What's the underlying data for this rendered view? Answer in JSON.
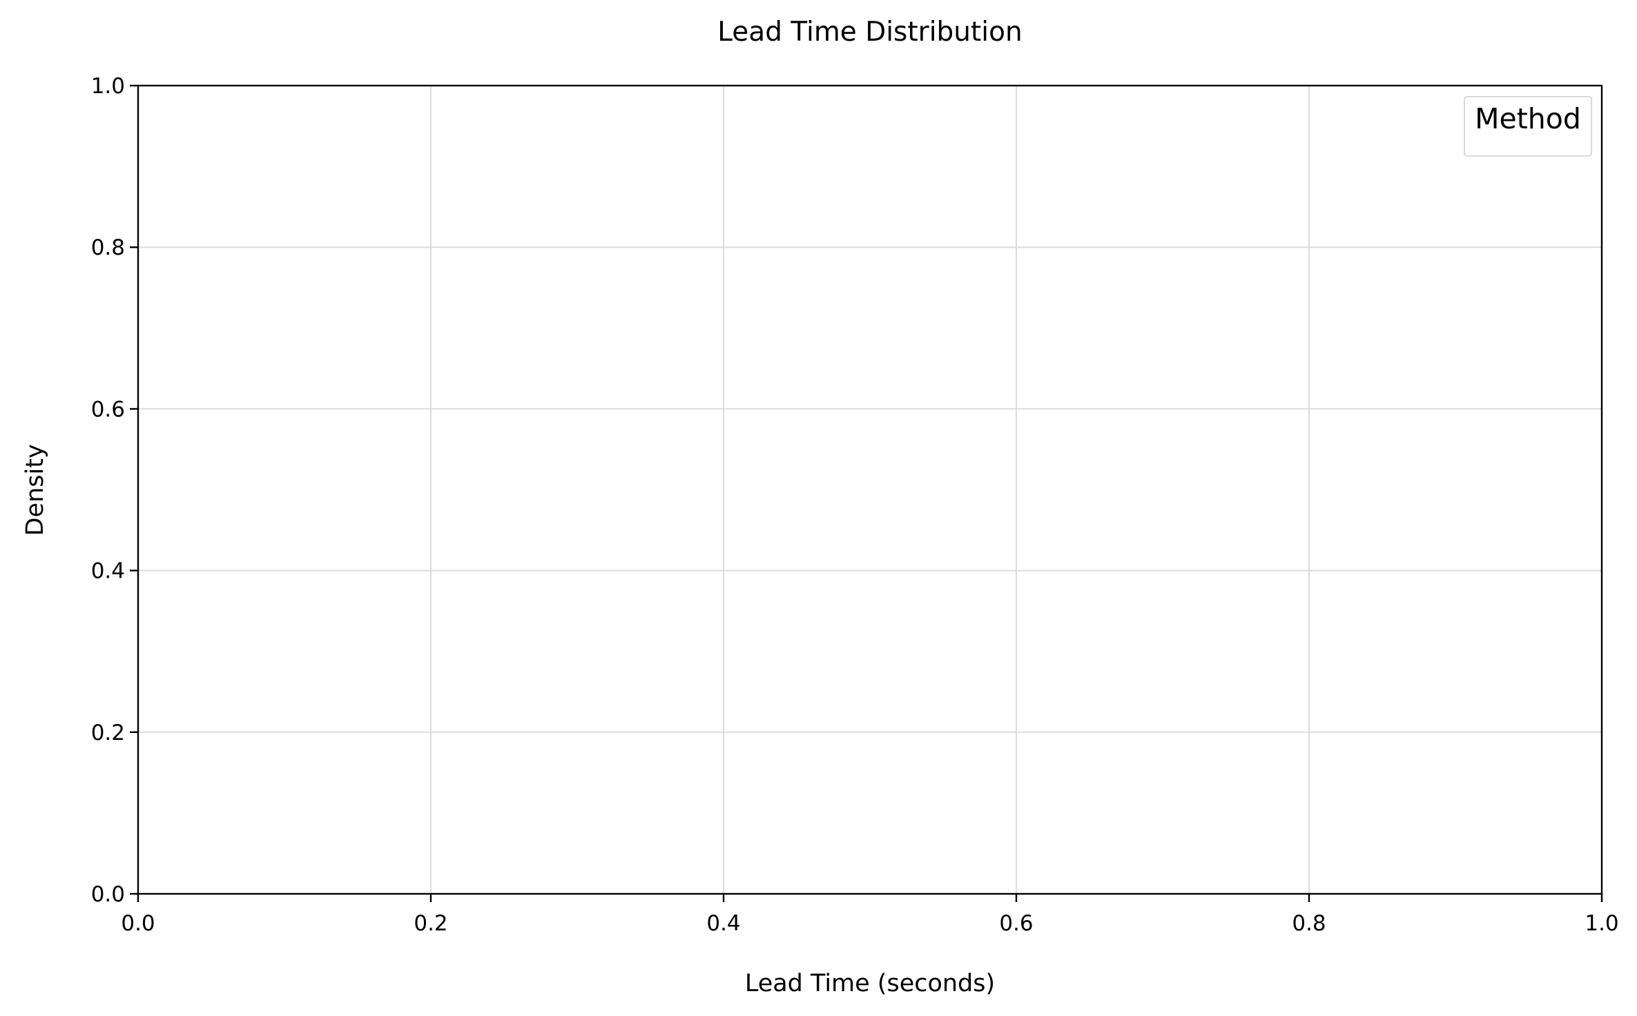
{
  "chart_data": {
    "type": "line",
    "title": "Lead Time Distribution",
    "xlabel": "Lead Time (seconds)",
    "ylabel": "Density",
    "xlim": [
      0.0,
      1.0
    ],
    "ylim": [
      0.0,
      1.0
    ],
    "x_ticks": [
      "0.0",
      "0.2",
      "0.4",
      "0.6",
      "0.8",
      "1.0"
    ],
    "y_ticks": [
      "0.0",
      "0.2",
      "0.4",
      "0.6",
      "0.8",
      "1.0"
    ],
    "series": [],
    "grid": true,
    "legend": {
      "title": "Method",
      "placement": "top-right",
      "entries": []
    }
  },
  "colors": {
    "background": "#ffffff",
    "axis": "#000000",
    "grid": "#dcdcdc",
    "legend_border": "#d9d9d9"
  }
}
